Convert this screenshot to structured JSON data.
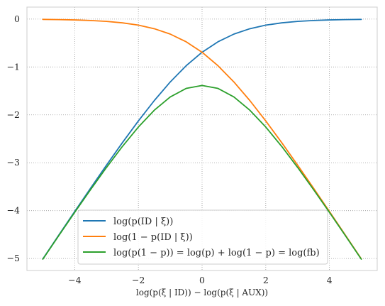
{
  "chart_data": {
    "type": "line",
    "title": "",
    "xlabel": "log(p(ξ | ID)) − log(p(ξ | AUX))",
    "ylabel": "",
    "xlim": [
      -5.5,
      5.5
    ],
    "ylim": [
      -5.25,
      0.25
    ],
    "xticks": [
      -4,
      -2,
      0,
      2,
      4
    ],
    "xtick_labels": [
      "−4",
      "−2",
      "0",
      "2",
      "4"
    ],
    "yticks": [
      0,
      -1,
      -2,
      -3,
      -4,
      -5
    ],
    "ytick_labels": [
      "0",
      "−1",
      "−2",
      "−3",
      "−4",
      "−5"
    ],
    "grid": true,
    "legend_position": "lower-center",
    "x": [
      -5,
      -4.5,
      -4,
      -3.5,
      -3,
      -2.5,
      -2,
      -1.5,
      -1,
      -0.5,
      0,
      0.5,
      1,
      1.5,
      2,
      2.5,
      3,
      3.5,
      4,
      4.5,
      5
    ],
    "series": [
      {
        "name": "log(p(ID | ξ))",
        "color": "#1f77b4",
        "values": [
          -5.0067,
          -4.5111,
          -4.0181,
          -3.5298,
          -3.0486,
          -2.5789,
          -2.1269,
          -1.7014,
          -1.3133,
          -0.9741,
          -0.6931,
          -0.4741,
          -0.3133,
          -0.2014,
          -0.1269,
          -0.0789,
          -0.0486,
          -0.0298,
          -0.0181,
          -0.0111,
          -0.0067
        ]
      },
      {
        "name": "log(1 − p(ID | ξ))",
        "color": "#ff7f0e",
        "values": [
          -0.0067,
          -0.0111,
          -0.0181,
          -0.0298,
          -0.0486,
          -0.0789,
          -0.1269,
          -0.2014,
          -0.3133,
          -0.4741,
          -0.6931,
          -0.9741,
          -1.3133,
          -1.7014,
          -2.1269,
          -2.5789,
          -3.0486,
          -3.5298,
          -4.0181,
          -4.5111,
          -5.0067
        ]
      },
      {
        "name": "log(p(1 − p)) = log(p) + log(1 − p) = log(fb)",
        "color": "#2ca02c",
        "values": [
          -5.0134,
          -4.5222,
          -4.0362,
          -3.5596,
          -3.0972,
          -2.6578,
          -2.2539,
          -1.9028,
          -1.6265,
          -1.4481,
          -1.3863,
          -1.4481,
          -1.6265,
          -1.9028,
          -2.2539,
          -2.6578,
          -3.0972,
          -3.5596,
          -4.0362,
          -4.5222,
          -5.0134
        ]
      }
    ]
  }
}
